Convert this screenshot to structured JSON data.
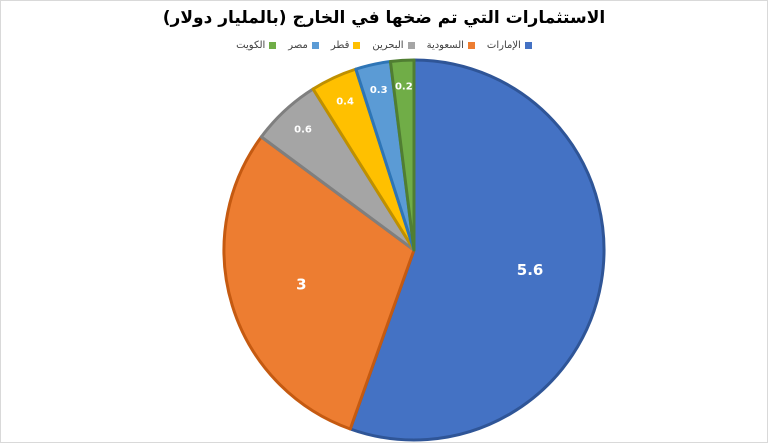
{
  "chart_data": {
    "type": "pie",
    "title": "الاستثمارات التي تم ضخها في الخارج (بالمليار دولار)",
    "legend_position": "top",
    "categories": [
      "الإمارات",
      "السعودية",
      "البحرين",
      "قطر",
      "مصر",
      "الكويت"
    ],
    "values": [
      5.6,
      3,
      0.6,
      0.4,
      0.3,
      0.2
    ],
    "labels": [
      "5.6",
      "3",
      "0.6",
      "0.4",
      "0.3",
      "0.2"
    ],
    "colors": [
      "#4472C4",
      "#ED7D31",
      "#A5A5A5",
      "#FFC000",
      "#5B9BD5",
      "#70AD47"
    ],
    "border_colors": [
      "#2F5597",
      "#C55A11",
      "#7F7F7F",
      "#BF9000",
      "#2E75B6",
      "#507E32"
    ]
  }
}
